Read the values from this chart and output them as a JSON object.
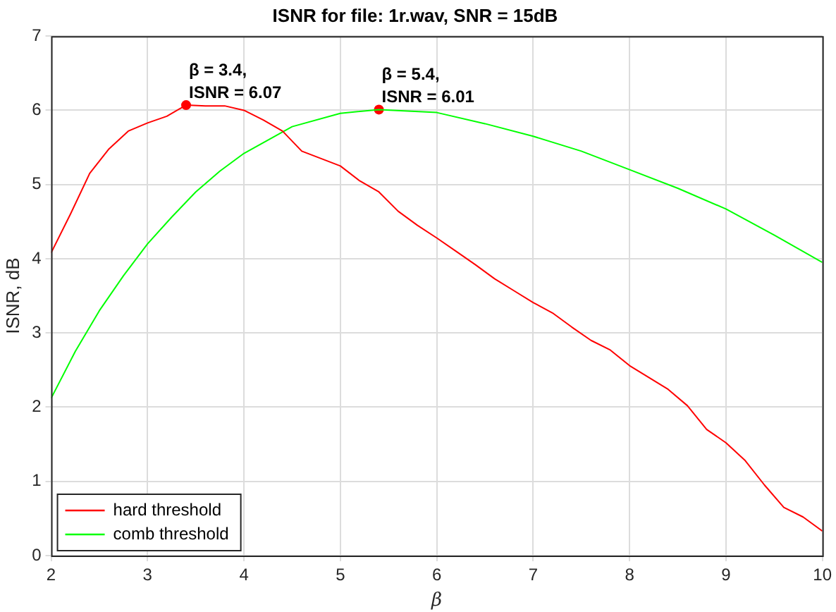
{
  "chart_data": {
    "type": "line",
    "title": "ISNR for file: 1r.wav, SNR = 15dB",
    "xlabel": "β",
    "ylabel": "ISNR, dB",
    "xlim": [
      2,
      10
    ],
    "xticks": [
      2,
      3,
      4,
      5,
      6,
      7,
      8,
      9,
      10
    ],
    "ylim": [
      0,
      7
    ],
    "yticks": [
      0,
      1,
      2,
      3,
      4,
      5,
      6,
      7
    ],
    "grid": true,
    "legend": "bottom left",
    "marker": "none",
    "line_style": "solid",
    "series": [
      {
        "name": "hard threshold",
        "color": "#ff0000",
        "x": [
          2,
          2.2,
          2.4,
          2.6,
          2.8,
          3.0,
          3.2,
          3.4,
          3.6,
          3.8,
          4.0,
          4.2,
          4.4,
          4.6,
          4.8,
          5.0,
          5.2,
          5.4,
          5.6,
          5.8,
          6.0,
          6.2,
          6.4,
          6.6,
          6.8,
          7.0,
          7.2,
          7.4,
          7.6,
          7.8,
          8.0,
          8.2,
          8.4,
          8.6,
          8.8,
          9.0,
          9.2,
          9.4,
          9.6,
          9.8,
          10
        ],
        "values": [
          4.08,
          4.6,
          5.15,
          5.48,
          5.72,
          5.83,
          5.92,
          6.07,
          6.06,
          6.06,
          6.0,
          5.87,
          5.72,
          5.45,
          5.35,
          5.25,
          5.05,
          4.9,
          4.64,
          4.45,
          4.28,
          4.1,
          3.92,
          3.73,
          3.57,
          3.41,
          3.27,
          3.08,
          2.9,
          2.77,
          2.56,
          2.4,
          2.24,
          2.02,
          1.7,
          1.52,
          1.28,
          0.95,
          0.65,
          0.52,
          0.33
        ]
      },
      {
        "name": "comb threshold",
        "color": "#00ff00",
        "x": [
          2,
          2.25,
          2.5,
          2.75,
          3,
          3.25,
          3.5,
          3.75,
          4,
          4.5,
          5,
          5.4,
          6,
          6.5,
          7,
          7.5,
          8,
          8.5,
          9,
          9.5,
          10
        ],
        "values": [
          2.12,
          2.75,
          3.3,
          3.77,
          4.2,
          4.56,
          4.9,
          5.18,
          5.42,
          5.78,
          5.96,
          6.01,
          5.97,
          5.82,
          5.65,
          5.45,
          5.2,
          4.95,
          4.67,
          4.32,
          3.95
        ]
      },
      {
        "type": "scatter",
        "color": "#ff0000",
        "marker": "circle",
        "x": [
          3.4,
          5.4
        ],
        "values": [
          6.07,
          6.01
        ]
      }
    ],
    "annotations": [
      {
        "text": "β = 3.4,\nISNR = 6.07",
        "x": 3.4,
        "y": 6.07
      },
      {
        "text": "β = 5.4,\nISNR = 6.01",
        "x": 5.4,
        "y": 6.01
      }
    ]
  }
}
